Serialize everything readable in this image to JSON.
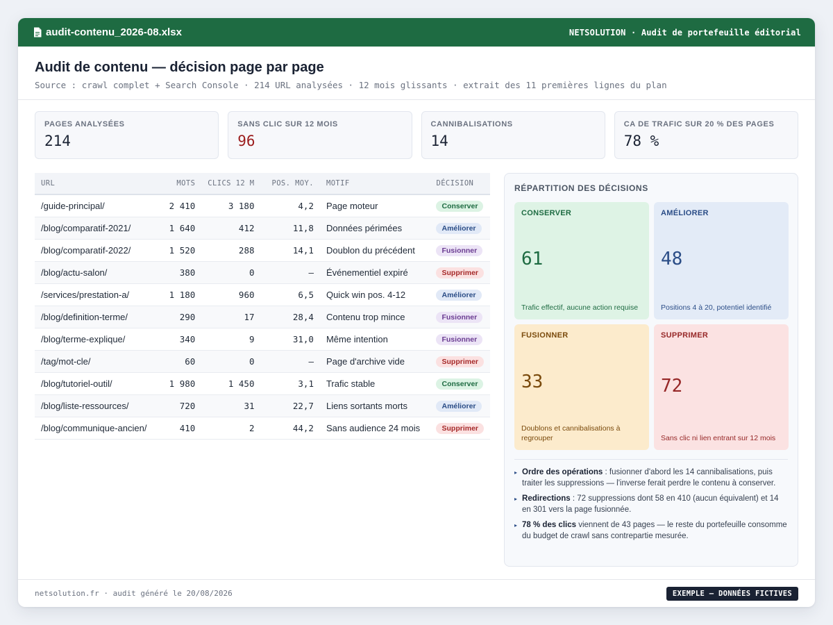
{
  "window": {
    "file_name": "audit-contenu_2026-08.xlsx",
    "file_icon": "document-icon",
    "brand_line": "NETSOLUTION · Audit de portefeuille éditorial"
  },
  "header": {
    "title": "Audit de contenu — décision page par page",
    "subtitle": "Source : crawl complet + Search Console · 214 URL analysées · 12 mois glissants · extrait des 11 premières lignes du plan"
  },
  "kpis": [
    {
      "label": "PAGES ANALYSÉES",
      "value": "214"
    },
    {
      "label": "SANS CLIC SUR 12 MOIS",
      "value": "96"
    },
    {
      "label": "CANNIBALISATIONS",
      "value": "14"
    },
    {
      "label": "CA DE TRAFIC SUR 20 % DES PAGES",
      "value": "78 %"
    }
  ],
  "table": {
    "headers": [
      "URL",
      "MOTS",
      "CLICS 12 M",
      "POS. MOY.",
      "MOTIF",
      "DÉCISION"
    ],
    "rows": [
      {
        "url": "/guide-principal/",
        "mots": "2 410",
        "clics": "3 180",
        "pos": "4,2",
        "motif": "Page moteur",
        "decision": "Conserver"
      },
      {
        "url": "/blog/comparatif-2021/",
        "mots": "1 640",
        "clics": "412",
        "pos": "11,8",
        "motif": "Données périmées",
        "decision": "Améliorer"
      },
      {
        "url": "/blog/comparatif-2022/",
        "mots": "1 520",
        "clics": "288",
        "pos": "14,1",
        "motif": "Doublon du précédent",
        "decision": "Fusionner"
      },
      {
        "url": "/blog/actu-salon/",
        "mots": "380",
        "clics": "0",
        "pos": "—",
        "motif": "Événementiel expiré",
        "decision": "Supprimer"
      },
      {
        "url": "/services/prestation-a/",
        "mots": "1 180",
        "clics": "960",
        "pos": "6,5",
        "motif": "Quick win pos. 4-12",
        "decision": "Améliorer"
      },
      {
        "url": "/blog/definition-terme/",
        "mots": "290",
        "clics": "17",
        "pos": "28,4",
        "motif": "Contenu trop mince",
        "decision": "Fusionner"
      },
      {
        "url": "/blog/terme-explique/",
        "mots": "340",
        "clics": "9",
        "pos": "31,0",
        "motif": "Même intention",
        "decision": "Fusionner"
      },
      {
        "url": "/tag/mot-cle/",
        "mots": "60",
        "clics": "0",
        "pos": "—",
        "motif": "Page d'archive vide",
        "decision": "Supprimer"
      },
      {
        "url": "/blog/tutoriel-outil/",
        "mots": "1 980",
        "clics": "1 450",
        "pos": "3,1",
        "motif": "Trafic stable",
        "decision": "Conserver"
      },
      {
        "url": "/blog/liste-ressources/",
        "mots": "720",
        "clics": "31",
        "pos": "22,7",
        "motif": "Liens sortants morts",
        "decision": "Améliorer"
      },
      {
        "url": "/blog/communique-ancien/",
        "mots": "410",
        "clics": "2",
        "pos": "44,2",
        "motif": "Sans audience 24 mois",
        "decision": "Supprimer"
      }
    ]
  },
  "panel": {
    "title": "RÉPARTITION DES DÉCISIONS",
    "tiles": [
      {
        "name": "CONSERVER",
        "count": "61",
        "desc": "Trafic effectif, aucune action requise"
      },
      {
        "name": "AMÉLIORER",
        "count": "48",
        "desc": "Positions 4 à 20, potentiel identifié"
      },
      {
        "name": "FUSIONNER",
        "count": "33",
        "desc": "Doublons et cannibalisations à regrouper"
      },
      {
        "name": "SUPPRIMER",
        "count": "72",
        "desc": "Sans clic ni lien entrant sur 12 mois"
      }
    ],
    "notes": [
      {
        "bold": "Ordre des opérations",
        "text": " : fusionner d'abord les 14 cannibalisations, puis traiter les suppressions — l'inverse ferait perdre le contenu à conserver."
      },
      {
        "bold": "Redirections",
        "text": " : 72 suppressions dont 58 en 410 (aucun équivalent) et 14 en 301 vers la page fusionnée."
      },
      {
        "bold": "78 % des clics",
        "text": " viennent de 43 pages — le reste du portefeuille consomme du budget de crawl sans contrepartie mesurée."
      }
    ]
  },
  "footer": {
    "left": "netsolution.fr · audit généré le 20/08/2026",
    "tag": "EXEMPLE — DONNÉES FICTIVES"
  },
  "colors": {
    "titlebar": "#1e6b42",
    "conserver": "#1e6b42",
    "ameliorer": "#2b4d87",
    "fusionner": "#6b3d92",
    "supprimer": "#a62a2a",
    "alert_value": "#9b1c1c"
  }
}
